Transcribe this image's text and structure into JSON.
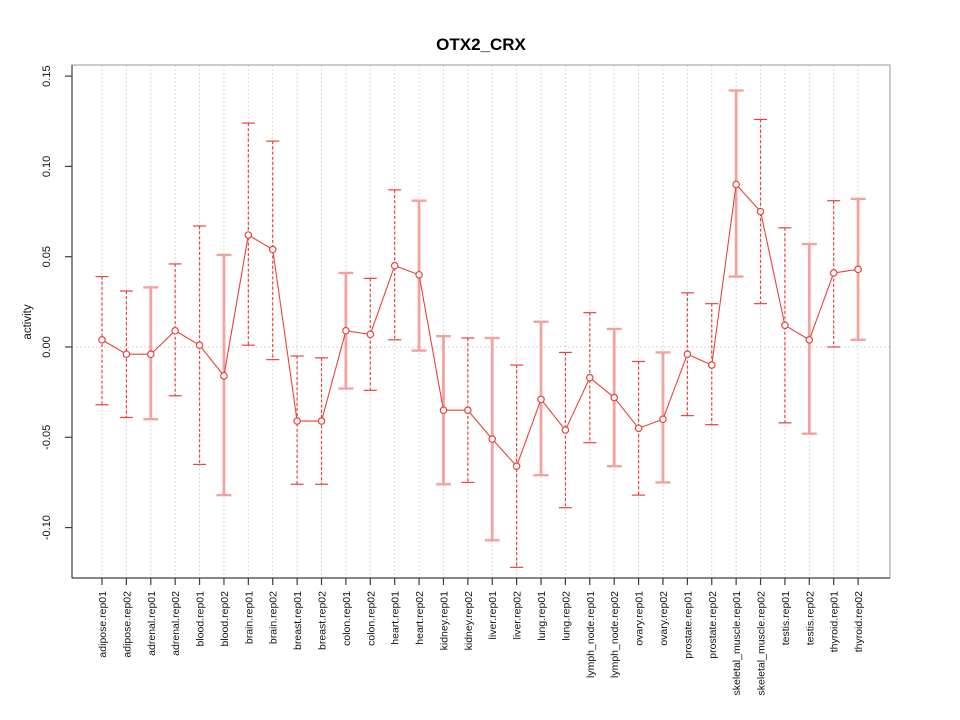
{
  "chart_data": {
    "type": "line",
    "title": "OTX2_CRX",
    "xlabel": "",
    "ylabel": "activity",
    "ylim": [
      -0.128,
      0.152
    ],
    "ytick_values": [
      0.15,
      0.1,
      0.05,
      0.0,
      -0.05,
      -0.1
    ],
    "ytick_labels": [
      "0.15",
      "0.10",
      "0.05",
      "0.00",
      "-0.05",
      "-0.10"
    ],
    "grid": {
      "vertical_dotted_per_category": true,
      "horizontal_zero_line_dotted": true
    },
    "legend": "none",
    "error_bars": true,
    "marker": "open-circle",
    "categories": [
      "adipose.rep01",
      "adipose.rep02",
      "adrenal.rep01",
      "adrenal.rep02",
      "blood.rep01",
      "blood.rep02",
      "brain.rep01",
      "brain.rep02",
      "breast.rep01",
      "breast.rep02",
      "colon.rep01",
      "colon.rep02",
      "heart.rep01",
      "heart.rep02",
      "kidney.rep01",
      "kidney.rep02",
      "liver.rep01",
      "liver.rep02",
      "lung.rep01",
      "lung.rep02",
      "lymph_node.rep01",
      "lymph_node.rep02",
      "ovary.rep01",
      "ovary.rep02",
      "prostate.rep01",
      "prostate.rep02",
      "skeletal_muscle.rep01",
      "skeletal_muscle.rep02",
      "testis.rep01",
      "testis.rep02",
      "thyroid.rep01",
      "thyroid.rep02"
    ],
    "series": [
      {
        "name": "activity",
        "values": [
          0.004,
          -0.004,
          -0.004,
          0.009,
          0.001,
          -0.016,
          0.062,
          0.054,
          -0.041,
          -0.041,
          0.009,
          0.007,
          0.045,
          0.04,
          -0.035,
          -0.035,
          -0.051,
          -0.066,
          -0.029,
          -0.046,
          -0.017,
          -0.028,
          -0.045,
          -0.04,
          -0.004,
          -0.01,
          0.09,
          0.075,
          0.012,
          0.004,
          0.041,
          0.043
        ],
        "ci_low": [
          -0.032,
          -0.039,
          -0.04,
          -0.027,
          -0.065,
          -0.082,
          0.001,
          -0.007,
          -0.076,
          -0.076,
          -0.023,
          -0.024,
          0.004,
          -0.002,
          -0.076,
          -0.075,
          -0.107,
          -0.122,
          -0.071,
          -0.089,
          -0.053,
          -0.066,
          -0.082,
          -0.075,
          -0.038,
          -0.043,
          0.039,
          0.024,
          -0.042,
          -0.048,
          0.0,
          0.004
        ],
        "ci_high": [
          0.039,
          0.031,
          0.033,
          0.046,
          0.067,
          0.051,
          0.124,
          0.114,
          -0.005,
          -0.006,
          0.041,
          0.038,
          0.087,
          0.081,
          0.006,
          0.005,
          0.005,
          -0.01,
          0.014,
          -0.003,
          0.019,
          0.01,
          -0.008,
          -0.003,
          0.03,
          0.024,
          0.142,
          0.126,
          0.066,
          0.057,
          0.081,
          0.082
        ],
        "bar_styles": [
          "dashed",
          "dashed",
          "solid",
          "dashed",
          "dashed",
          "solid",
          "dashed",
          "dashed",
          "dashed",
          "dashed",
          "solid",
          "dashed",
          "dashed",
          "solid",
          "solid",
          "dashed",
          "solid",
          "dashed",
          "solid",
          "dashed",
          "dashed",
          "solid",
          "dashed",
          "solid",
          "dashed",
          "dashed",
          "solid",
          "dashed",
          "dashed",
          "solid",
          "dashed",
          "solid"
        ]
      }
    ],
    "colors": {
      "point": "#e8433c",
      "connector": "#e8433c",
      "bar_dashed": "#e8433c",
      "bar_solid": "#f3a29e",
      "grid": "#cccccc",
      "zero_line": "#cccccc",
      "frame": "#9a9a9a",
      "axis": "#3d3d3d",
      "text": "#111111"
    }
  }
}
